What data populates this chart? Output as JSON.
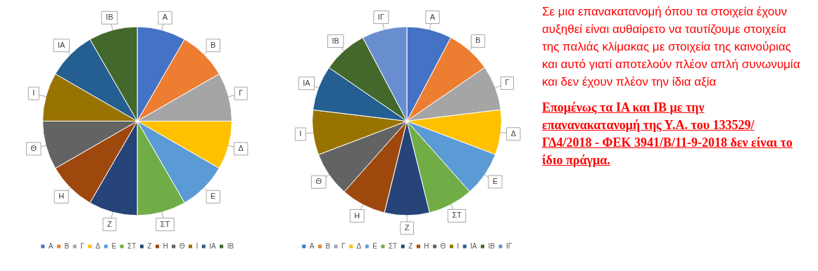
{
  "chart_data": [
    {
      "type": "pie",
      "categories": [
        "Α",
        "Β",
        "Γ",
        "Δ",
        "Ε",
        "ΣΤ",
        "Ζ",
        "Η",
        "Θ",
        "Ι",
        "ΙΑ",
        "ΙΒ"
      ],
      "values": [
        8.33,
        8.33,
        8.33,
        8.33,
        8.33,
        8.33,
        8.33,
        8.33,
        8.33,
        8.33,
        8.33,
        8.33
      ],
      "colors": [
        "#4472c4",
        "#ed7d31",
        "#a5a5a5",
        "#ffc000",
        "#5b9bd5",
        "#70ad47",
        "#264478",
        "#9e480e",
        "#636363",
        "#997300",
        "#255e91",
        "#43682b"
      ],
      "legend": "bottom"
    },
    {
      "type": "pie",
      "categories": [
        "Α",
        "Β",
        "Γ",
        "Δ",
        "Ε",
        "ΣΤ",
        "Ζ",
        "Η",
        "Θ",
        "Ι",
        "ΙΑ",
        "ΙΒ",
        "ΙΓ"
      ],
      "values": [
        7.69,
        7.69,
        7.69,
        7.69,
        7.69,
        7.69,
        7.69,
        7.69,
        7.69,
        7.69,
        7.69,
        7.69,
        7.72
      ],
      "colors": [
        "#4472c4",
        "#ed7d31",
        "#a5a5a5",
        "#ffc000",
        "#5b9bd5",
        "#70ad47",
        "#264478",
        "#9e480e",
        "#636363",
        "#997300",
        "#255e91",
        "#43682b",
        "#698ed0"
      ],
      "legend": "bottom"
    },
    {
      "type": "other",
      "annotations": [
        "Σε μια επανακατανομή όπου τα στοιχεία έχουν αυξηθεί είναι αυθαίρετο να ταυτίζουμε στοιχεία της παλιάς κλίμακας με στοιχεία της καινούριας και αυτό γιατί αποτελούν πλέον απλή συνωνυμία και δεν έχουν πλέον την ίδια αξία",
        "Επομένως τα ΙΑ και ΙΒ με την επανανακατανομή της Υ.Α. του 133529/ΓΔ4/2018 - ΦΕΚ 3941/Β/11-9-2018 δεν είναι το ίδιο πράγμα."
      ]
    }
  ]
}
